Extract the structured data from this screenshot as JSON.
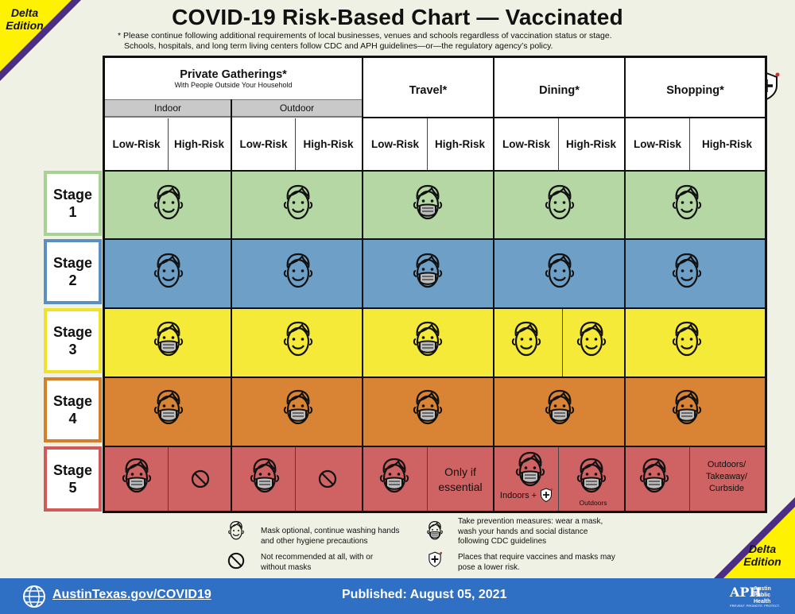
{
  "badge": {
    "top_left": "Delta Edition",
    "bottom_right": "Delta Edition"
  },
  "title": "COVID-19 Risk-Based Chart — Vaccinated",
  "note": {
    "line1": "* Please continue following additional requirements of local businesses, venues and schools regardless of vaccination status or stage.",
    "line2": "Schools, hospitals, and long term living centers follow CDC and APH guidelines—or—the regulatory agency’s policy."
  },
  "columns": {
    "private": {
      "title": "Private Gatherings*",
      "subtitle": "With People Outside Your Household",
      "indoor": "Indoor",
      "outdoor": "Outdoor"
    },
    "travel": "Travel*",
    "dining": "Dining*",
    "shopping": "Shopping*",
    "low_line1": "Low-",
    "low_line2": "Risk",
    "high_line1": "High-",
    "high_line2": "Risk"
  },
  "stages": [
    {
      "label": "Stage",
      "num": "1",
      "color": "#b5d7a3",
      "border": "#a8d196"
    },
    {
      "label": "Stage",
      "num": "2",
      "color": "#6e9fc6",
      "border": "#5b8ec2"
    },
    {
      "label": "Stage",
      "num": "3",
      "color": "#f6ea38",
      "border": "#f0e22c"
    },
    {
      "label": "Stage",
      "num": "4",
      "color": "#d98434",
      "border": "#d67f2a"
    },
    {
      "label": "Stage",
      "num": "5",
      "color": "#cf6262",
      "border": "#d05a5a"
    }
  ],
  "stage5": {
    "travel_high": "Only if essential",
    "dining_low": "Indoors +",
    "dining_high": "Outdoors",
    "shopping_high": "Outdoors/ Takeaway/ Curbside"
  },
  "legend": {
    "mask_optional": "Mask optional, continue washing hands and other hygiene precautions",
    "take_prevention": "Take prevention measures: wear a mask, wash your hands and social distance following CDC guidelines",
    "not_recommended": "Not recommended at all, with or without masks",
    "places": "Places that require vaccines and masks may pose a lower risk."
  },
  "footer": {
    "link": "AustinTexas.gov/COVID19",
    "published": "Published: August 05, 2021",
    "aph_mark": "APH",
    "aph_name": "Austin Public Health",
    "aph_tag": "PREVENT. PROMOTE. PROTECT."
  },
  "icons": [
    "face-icon",
    "masked-face-icon",
    "no-entry-icon",
    "vaccine-shield-icon",
    "globe-icon"
  ]
}
